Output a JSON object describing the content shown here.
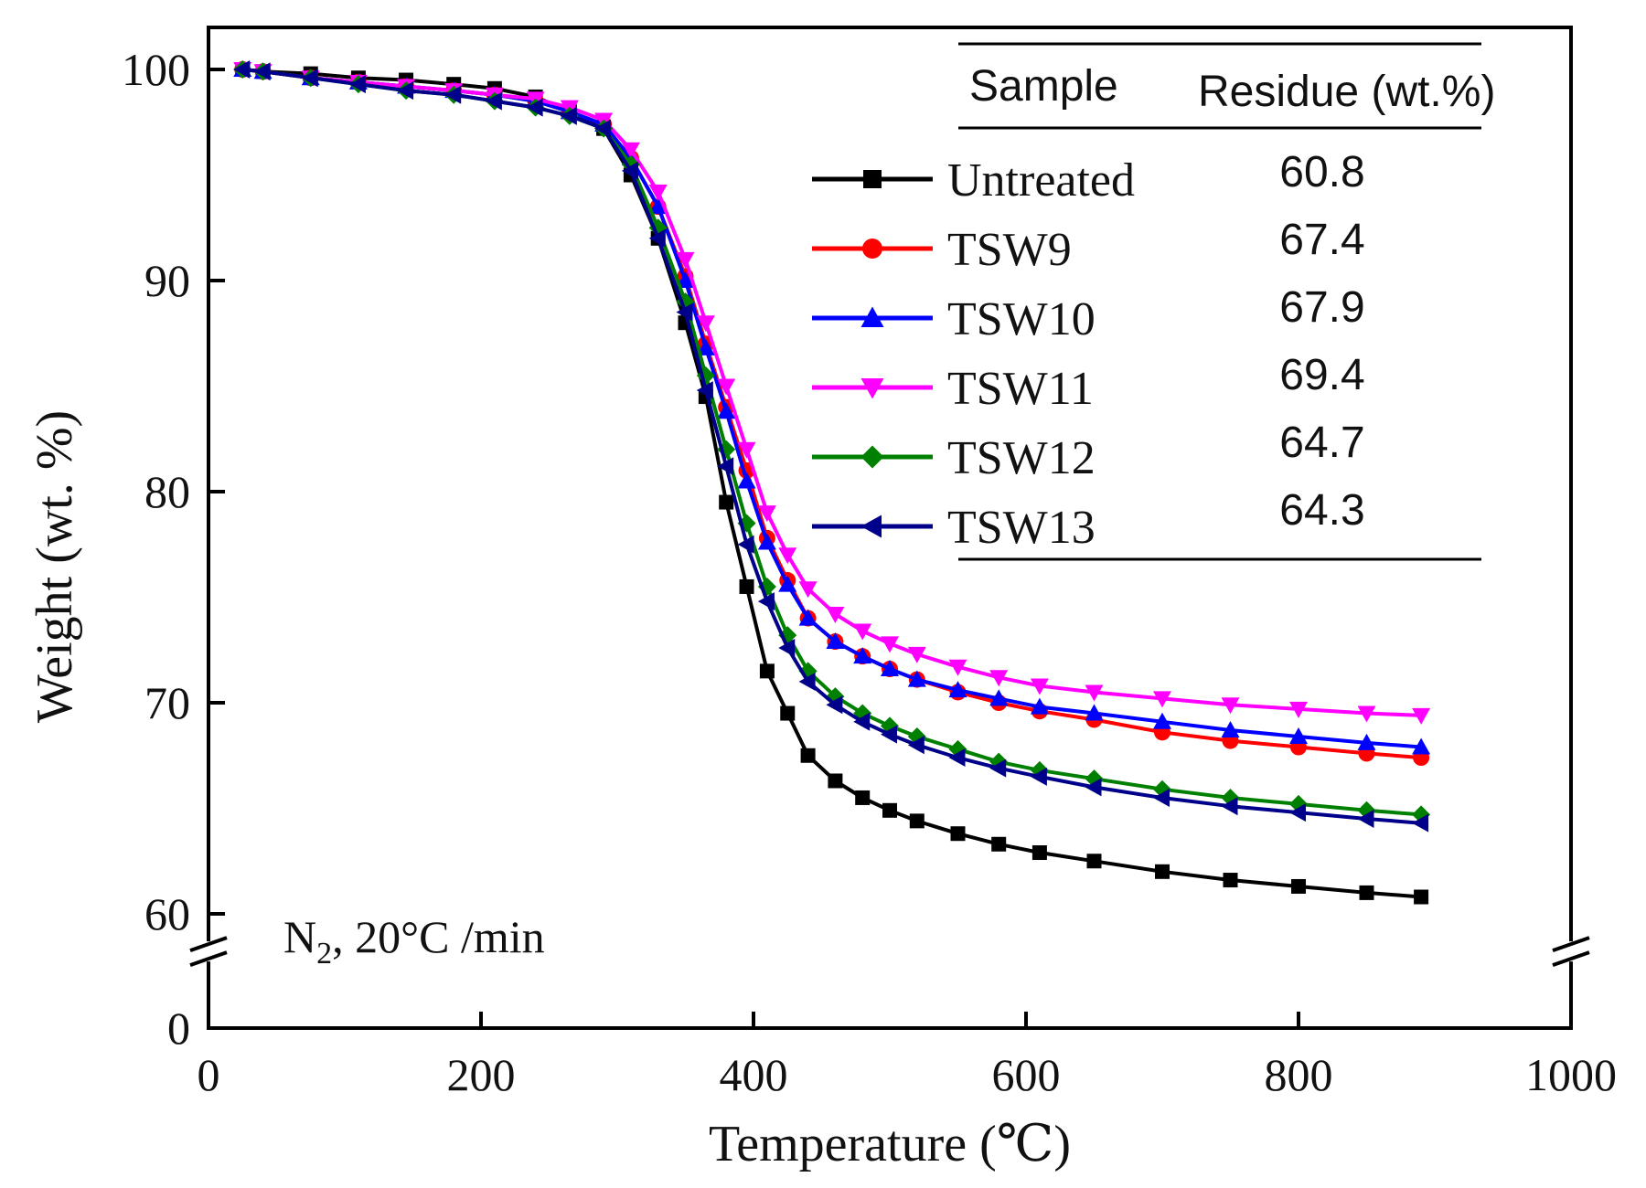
{
  "chart_data": {
    "type": "line",
    "xlabel": "Temperature (℃)",
    "ylabel": "Weight (wt. %)",
    "xlim": [
      0,
      1000
    ],
    "ylim": [
      0,
      100
    ],
    "y_axis_break": [
      0,
      60
    ],
    "x_ticks": [
      "0",
      "200",
      "400",
      "600",
      "800",
      "1000"
    ],
    "y_ticks": [
      "0",
      "60",
      "70",
      "80",
      "90",
      "100"
    ],
    "grid": false,
    "legend_position": "top-right",
    "annotation": {
      "main": "N",
      "sub": "2",
      "rest": ",  20°C /min"
    },
    "table_headers": {
      "sample": "Sample",
      "residue": "Residue (wt.%)"
    },
    "series": [
      {
        "name": "Untreated",
        "residue": "60.8",
        "color": "#000000",
        "marker": "square",
        "x": [
          25,
          40,
          75,
          110,
          145,
          180,
          210,
          240,
          265,
          290,
          310,
          330,
          350,
          365,
          380,
          395,
          410,
          425,
          440,
          460,
          480,
          500,
          520,
          550,
          580,
          610,
          650,
          700,
          750,
          800,
          850,
          890
        ],
        "y": [
          100,
          99.9,
          99.8,
          99.6,
          99.5,
          99.3,
          99.1,
          98.7,
          98.0,
          97.2,
          95.0,
          92.0,
          88.0,
          84.5,
          79.5,
          75.5,
          71.5,
          69.5,
          67.5,
          66.3,
          65.5,
          64.9,
          64.4,
          63.8,
          63.3,
          62.9,
          62.5,
          62.0,
          61.6,
          61.3,
          61.0,
          60.8
        ]
      },
      {
        "name": "TSW9",
        "residue": "67.4",
        "color": "#ff0000",
        "marker": "circle",
        "x": [
          25,
          40,
          75,
          110,
          145,
          180,
          210,
          240,
          265,
          290,
          310,
          330,
          350,
          365,
          380,
          395,
          410,
          425,
          440,
          460,
          480,
          500,
          520,
          550,
          580,
          610,
          650,
          700,
          750,
          800,
          850,
          890
        ],
        "y": [
          100,
          99.9,
          99.6,
          99.4,
          99.2,
          99.0,
          98.8,
          98.5,
          98.0,
          97.4,
          95.8,
          93.5,
          90.2,
          87.0,
          84.0,
          81.0,
          77.8,
          75.8,
          74.0,
          72.9,
          72.2,
          71.6,
          71.1,
          70.5,
          70.0,
          69.6,
          69.2,
          68.6,
          68.2,
          67.9,
          67.6,
          67.4
        ]
      },
      {
        "name": "TSW10",
        "residue": "67.9",
        "color": "#0000ff",
        "marker": "triangle-up",
        "x": [
          25,
          40,
          75,
          110,
          145,
          180,
          210,
          240,
          265,
          290,
          310,
          330,
          350,
          365,
          380,
          395,
          410,
          425,
          440,
          460,
          480,
          500,
          520,
          550,
          580,
          610,
          650,
          700,
          750,
          800,
          850,
          890
        ],
        "y": [
          100,
          99.9,
          99.6,
          99.4,
          99.2,
          99.0,
          98.8,
          98.5,
          98.0,
          97.4,
          95.8,
          93.5,
          90.0,
          86.8,
          83.8,
          80.5,
          77.6,
          75.6,
          74.0,
          72.9,
          72.2,
          71.6,
          71.1,
          70.6,
          70.2,
          69.8,
          69.5,
          69.1,
          68.7,
          68.4,
          68.1,
          67.9
        ]
      },
      {
        "name": "TSW11",
        "residue": "69.4",
        "color": "#ff00ff",
        "marker": "triangle-down",
        "x": [
          25,
          40,
          75,
          110,
          145,
          180,
          210,
          240,
          265,
          290,
          310,
          330,
          350,
          365,
          380,
          395,
          410,
          425,
          440,
          460,
          480,
          500,
          520,
          550,
          580,
          610,
          650,
          700,
          750,
          800,
          850,
          890
        ],
        "y": [
          100,
          99.9,
          99.6,
          99.4,
          99.2,
          99.0,
          98.8,
          98.6,
          98.2,
          97.6,
          96.2,
          94.2,
          91.0,
          88.0,
          85.0,
          82.0,
          79.0,
          77.0,
          75.4,
          74.2,
          73.4,
          72.8,
          72.3,
          71.7,
          71.2,
          70.8,
          70.5,
          70.2,
          69.9,
          69.7,
          69.5,
          69.4
        ]
      },
      {
        "name": "TSW12",
        "residue": "64.7",
        "color": "#008000",
        "marker": "diamond",
        "x": [
          25,
          40,
          75,
          110,
          145,
          180,
          210,
          240,
          265,
          290,
          310,
          330,
          350,
          365,
          380,
          395,
          410,
          425,
          440,
          460,
          480,
          500,
          520,
          550,
          580,
          610,
          650,
          700,
          750,
          800,
          850,
          890
        ],
        "y": [
          100,
          99.9,
          99.6,
          99.3,
          99.0,
          98.8,
          98.5,
          98.2,
          97.8,
          97.2,
          95.5,
          92.5,
          89.0,
          85.5,
          82.0,
          78.5,
          75.5,
          73.2,
          71.5,
          70.3,
          69.5,
          68.9,
          68.4,
          67.8,
          67.2,
          66.8,
          66.4,
          65.9,
          65.5,
          65.2,
          64.9,
          64.7
        ]
      },
      {
        "name": "TSW13",
        "residue": "64.3",
        "color": "#00008b",
        "marker": "triangle-left",
        "x": [
          25,
          40,
          75,
          110,
          145,
          180,
          210,
          240,
          265,
          290,
          310,
          330,
          350,
          365,
          380,
          395,
          410,
          425,
          440,
          460,
          480,
          500,
          520,
          550,
          580,
          610,
          650,
          700,
          750,
          800,
          850,
          890
        ],
        "y": [
          100,
          99.9,
          99.6,
          99.3,
          99.0,
          98.8,
          98.5,
          98.2,
          97.8,
          97.2,
          95.2,
          92.0,
          88.5,
          84.8,
          81.2,
          77.5,
          74.8,
          72.6,
          71.0,
          69.9,
          69.1,
          68.5,
          68.0,
          67.4,
          66.9,
          66.5,
          66.0,
          65.5,
          65.1,
          64.8,
          64.5,
          64.3
        ]
      }
    ]
  }
}
